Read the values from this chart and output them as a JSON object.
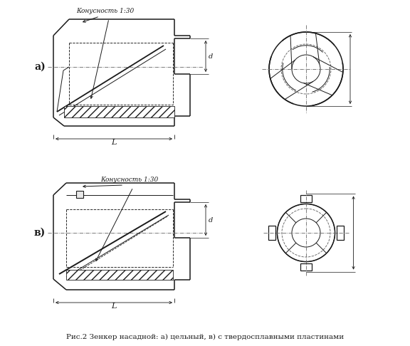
{
  "caption": "Рис.2 Зенкер насадной: а) цельный, в) с твердосплавными пластинами",
  "label_a": "а)",
  "label_b": "в)",
  "annotation_a": "Конусность 1:30",
  "annotation_b": "Конусность 1:30",
  "dim_L": "L",
  "dim_d": "d",
  "bg_color": "#ffffff",
  "line_color": "#1a1a1a",
  "fig_width": 5.76,
  "fig_height": 4.86,
  "dpi": 100
}
